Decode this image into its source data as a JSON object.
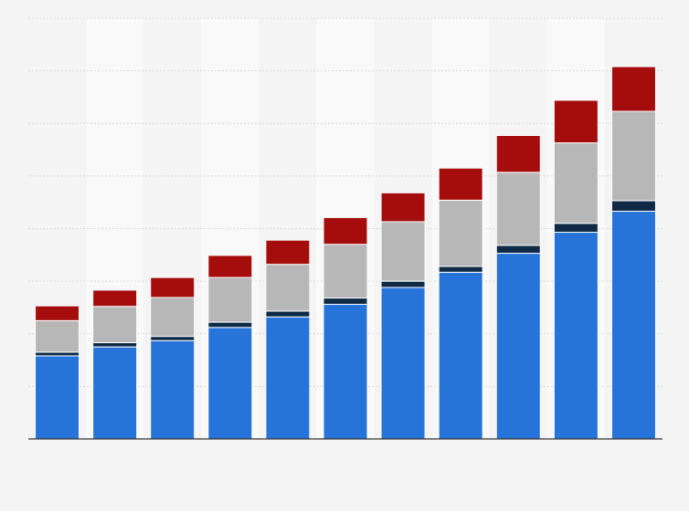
{
  "chart_data": {
    "type": "bar",
    "stacked": true,
    "title": "",
    "xlabel": "",
    "ylabel": "",
    "categories": [
      "",
      "",
      "",
      "",
      "",
      "",
      "",
      "",
      "",
      "",
      ""
    ],
    "ylim": [
      0,
      80
    ],
    "grid": true,
    "series": [
      {
        "name": "",
        "color": "#2673d9",
        "values": [
          15.8,
          17.5,
          18.7,
          21.2,
          23.2,
          25.6,
          28.8,
          31.7,
          35.3,
          39.3,
          43.3
        ]
      },
      {
        "name": "",
        "color": "#0f2a47",
        "values": [
          0.7,
          0.8,
          0.8,
          1.0,
          1.1,
          1.2,
          1.2,
          1.1,
          1.5,
          1.7,
          2.0
        ]
      },
      {
        "name": "",
        "color": "#b7b7b7",
        "values": [
          6.0,
          6.9,
          7.4,
          8.5,
          8.9,
          10.2,
          11.3,
          12.6,
          13.9,
          15.3,
          17.0
        ]
      },
      {
        "name": "",
        "color": "#a50d0d",
        "values": [
          2.8,
          3.1,
          3.8,
          4.2,
          4.6,
          5.1,
          5.5,
          6.1,
          7.0,
          8.1,
          8.5
        ]
      }
    ]
  }
}
